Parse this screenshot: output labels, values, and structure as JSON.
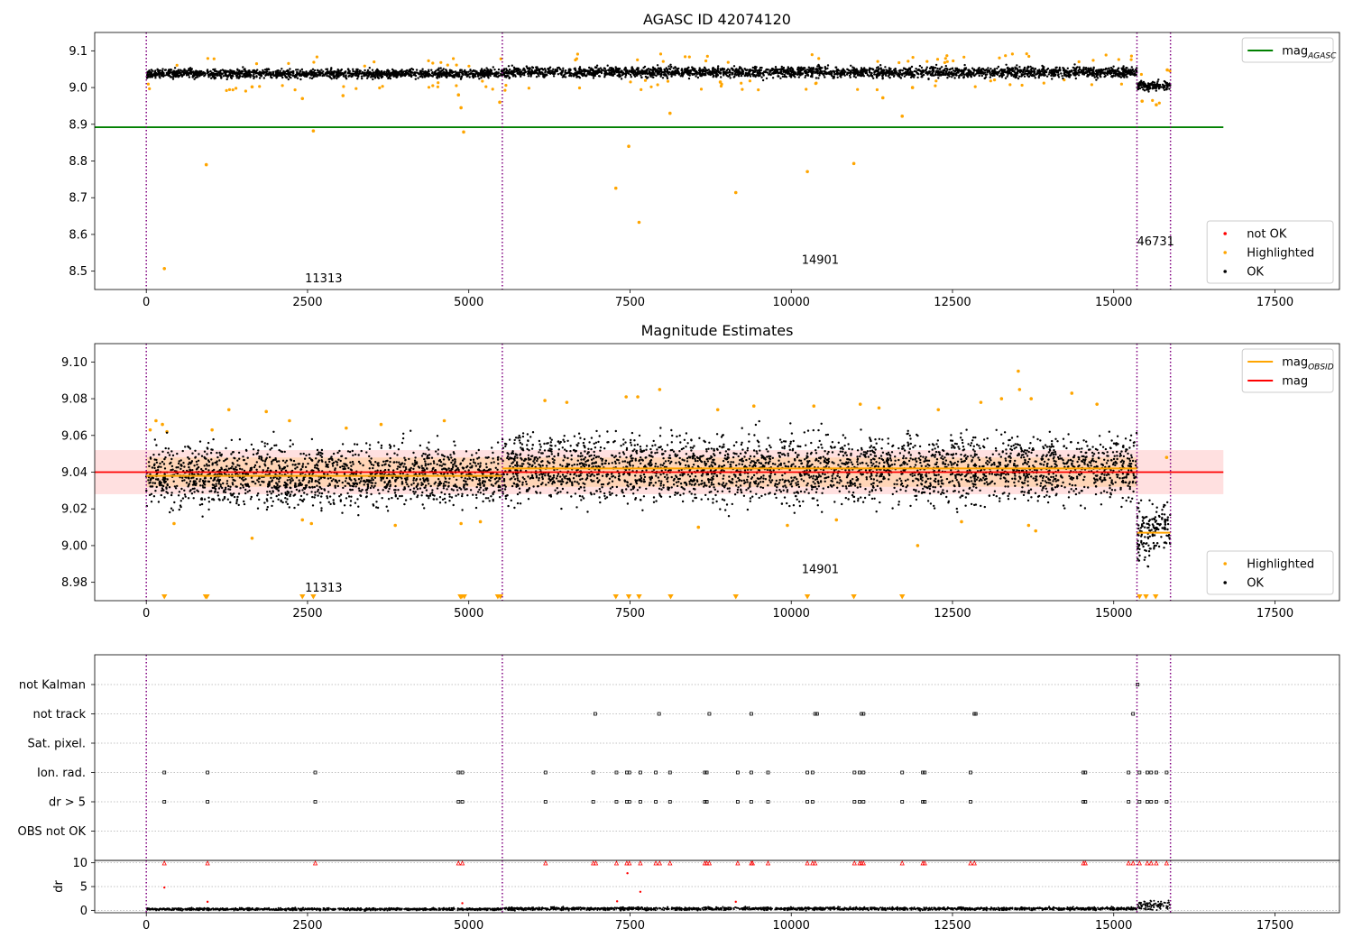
{
  "chart_data": [
    {
      "type": "scatter",
      "title": "AGASC ID 42074120",
      "xlabel": "",
      "ylabel": "",
      "xlim": [
        -800,
        18500
      ],
      "ylim": [
        8.45,
        9.15
      ],
      "xticks": [
        0,
        2500,
        5000,
        7500,
        10000,
        12500,
        15000,
        17500
      ],
      "yticks": [
        8.5,
        8.6,
        8.7,
        8.8,
        8.9,
        9.0,
        9.1
      ],
      "ytick_decimals": 1,
      "obs_boundaries": [
        0,
        5520,
        15360,
        15880
      ],
      "obs_labels": [
        {
          "text": "11313",
          "x": 2750,
          "y": 8.47
        },
        {
          "text": "14901",
          "x": 10450,
          "y": 8.52
        },
        {
          "text": "46731",
          "x": 15650,
          "y": 8.57
        }
      ],
      "segments": [
        {
          "x0": 0,
          "x1": 5520,
          "mean": 9.038,
          "spread": 0.006
        },
        {
          "x0": 5520,
          "x1": 15360,
          "mean": 9.042,
          "spread": 0.007
        },
        {
          "x0": 15360,
          "x1": 15880,
          "mean": 9.005,
          "spread": 0.006
        }
      ],
      "reference_lines": [
        {
          "name": "mag_AGASC",
          "label_main": "mag",
          "label_sub": "AGASC",
          "y": 8.892,
          "x0": -800,
          "x1": 16700,
          "color": "#008000"
        }
      ],
      "highlighted_points": {
        "x": [
          280,
          930,
          1640,
          2420,
          2590,
          3050,
          4840,
          4880,
          4920,
          5480,
          7280,
          7480,
          7640,
          8120,
          8900,
          9140,
          10250,
          10970,
          11420,
          11720,
          11880,
          15440,
          15660,
          15830
        ],
        "y": [
          8.507,
          8.79,
          9.002,
          8.97,
          8.882,
          8.978,
          8.98,
          8.945,
          8.879,
          8.96,
          8.726,
          8.84,
          8.633,
          8.93,
          9.015,
          8.714,
          8.771,
          8.793,
          8.972,
          8.922,
          9.0,
          8.963,
          8.953,
          9.048
        ]
      },
      "legends": [
        {
          "position": "top-right",
          "items": [
            {
              "label_main": "mag",
              "label_sub": "AGASC",
              "kind": "line",
              "color": "#008000"
            }
          ]
        },
        {
          "position": "bottom-right",
          "items": [
            {
              "label_main": "not OK",
              "label_sub": "",
              "kind": "dot",
              "color": "#ff0000"
            },
            {
              "label_main": "Highlighted",
              "label_sub": "",
              "kind": "dot",
              "color": "#ffa500"
            },
            {
              "label_main": "OK",
              "label_sub": "",
              "kind": "dot",
              "color": "#000000"
            }
          ]
        }
      ]
    },
    {
      "type": "scatter",
      "title": "Magnitude Estimates",
      "xlabel": "",
      "ylabel": "",
      "xlim": [
        -800,
        18500
      ],
      "ylim": [
        8.97,
        9.11
      ],
      "xticks": [
        0,
        2500,
        5000,
        7500,
        10000,
        12500,
        15000,
        17500
      ],
      "yticks": [
        8.98,
        9.0,
        9.02,
        9.04,
        9.06,
        9.08,
        9.1
      ],
      "ytick_decimals": 2,
      "obs_boundaries": [
        0,
        5520,
        15360,
        15880
      ],
      "obs_labels": [
        {
          "text": "11313",
          "x": 2750,
          "y": 8.975
        },
        {
          "text": "14901",
          "x": 10450,
          "y": 8.985
        }
      ],
      "segments": [
        {
          "x0": 0,
          "x1": 5520,
          "mean": 9.038,
          "spread": 0.008
        },
        {
          "x0": 5520,
          "x1": 15360,
          "mean": 9.042,
          "spread": 0.009
        },
        {
          "x0": 15360,
          "x1": 15880,
          "mean": 9.007,
          "spread": 0.008
        }
      ],
      "band": {
        "y0": 9.028,
        "y1": 9.052,
        "x0": -800,
        "x1": 16700,
        "color": "#ff0000"
      },
      "obsid_band": {
        "y0": 9.032,
        "y1": 9.048,
        "x0": 0,
        "x1": 15360,
        "color": "#ffa500"
      },
      "reference_lines": [
        {
          "name": "mag",
          "label_main": "mag",
          "label_sub": "",
          "y": 9.04,
          "x0": -800,
          "x1": 16700,
          "color": "#ff0000"
        }
      ],
      "obsid_steps": [
        {
          "x0": 0,
          "x1": 5520,
          "y": 9.038
        },
        {
          "x0": 5520,
          "x1": 15360,
          "y": 9.042
        },
        {
          "x0": 15360,
          "x1": 15880,
          "y": 9.007
        }
      ],
      "highlighted_points": {
        "x": [
          60,
          150,
          250,
          320,
          430,
          1020,
          1280,
          1640,
          1860,
          2220,
          2420,
          2560,
          3100,
          3640,
          3860,
          4620,
          4880,
          5180,
          6180,
          6520,
          7440,
          7620,
          7960,
          8560,
          8860,
          9420,
          9940,
          10350,
          10700,
          11070,
          11360,
          11960,
          12280,
          12640,
          12940,
          13260,
          13520,
          13540,
          13680,
          13720,
          13790,
          14350,
          14740,
          15820
        ],
        "y": [
          9.063,
          9.068,
          9.066,
          9.062,
          9.012,
          9.063,
          9.074,
          9.004,
          9.073,
          9.068,
          9.014,
          9.012,
          9.064,
          9.066,
          9.011,
          9.068,
          9.012,
          9.013,
          9.079,
          9.078,
          9.081,
          9.081,
          9.085,
          9.01,
          9.074,
          9.076,
          9.011,
          9.076,
          9.014,
          9.077,
          9.075,
          9.0,
          9.074,
          9.013,
          9.078,
          9.08,
          9.095,
          9.085,
          9.011,
          9.08,
          9.008,
          9.083,
          9.077,
          9.048
        ]
      },
      "clipped_low_x": [
        280,
        920,
        940,
        2420,
        2590,
        4870,
        4890,
        4930,
        5450,
        5490,
        7280,
        7480,
        7640,
        8130,
        9140,
        10250,
        10970,
        11720,
        15400,
        15500,
        15650
      ],
      "legends": [
        {
          "position": "top-right",
          "items": [
            {
              "label_main": "mag",
              "label_sub": "OBSID",
              "kind": "line",
              "color": "#ffa500"
            },
            {
              "label_main": "mag",
              "label_sub": "",
              "kind": "line",
              "color": "#ff0000"
            }
          ]
        },
        {
          "position": "bottom-right",
          "items": [
            {
              "label_main": "Highlighted",
              "label_sub": "",
              "kind": "dot",
              "color": "#ffa500"
            },
            {
              "label_main": "OK",
              "label_sub": "",
              "kind": "dot",
              "color": "#000000"
            }
          ]
        }
      ]
    },
    {
      "type": "scatter",
      "title": "",
      "xlabel": "",
      "ylabel": "",
      "xlim": [
        -800,
        18500
      ],
      "categories": [
        "not Kalman",
        "not track",
        "Sat. pixel.",
        "Ion. rad.",
        "dr > 5",
        "OBS not OK"
      ],
      "obs_boundaries": [
        0,
        5520,
        15360,
        15880
      ],
      "flag_events": {
        "not Kalman": [
          15370
        ],
        "not track": [
          6960,
          7950,
          8730,
          9380,
          10370,
          10400,
          11090,
          11120,
          12840,
          12860,
          15300
        ],
        "Sat. pixel.": [],
        "Ion. rad.": [
          280,
          950,
          2620,
          4840,
          4900,
          6190,
          6930,
          7290,
          7450,
          7490,
          7660,
          7900,
          8120,
          8660,
          8690,
          9170,
          9380,
          9640,
          10250,
          10330,
          10980,
          11060,
          11120,
          11720,
          12040,
          12070,
          12780,
          14530,
          14560,
          15230,
          15400,
          15520,
          15580,
          15660,
          15820
        ],
        "dr > 5": [
          280,
          950,
          2620,
          4840,
          4900,
          6190,
          6930,
          7290,
          7450,
          7490,
          7660,
          7900,
          8120,
          8660,
          8690,
          9170,
          9380,
          9640,
          10250,
          10330,
          10980,
          11060,
          11120,
          11720,
          12040,
          12070,
          12780,
          14530,
          14560,
          15230,
          15400,
          15520,
          15580,
          15660,
          15820
        ],
        "OBS not OK": []
      }
    },
    {
      "type": "scatter",
      "title": "",
      "xlabel": "",
      "ylabel": "dr",
      "xlim": [
        -800,
        18500
      ],
      "ylim": [
        -0.5,
        10.5
      ],
      "yticks": [
        0,
        5,
        10
      ],
      "ytick_decimals": 0,
      "obs_boundaries": [
        0,
        5520,
        15360,
        15880
      ],
      "segments": [
        {
          "x0": 0,
          "x1": 5520,
          "mean": 0.25,
          "spread": 0.12
        },
        {
          "x0": 5520,
          "x1": 15360,
          "mean": 0.35,
          "spread": 0.15
        },
        {
          "x0": 15360,
          "x1": 15880,
          "mean": 1.1,
          "spread": 0.45
        }
      ],
      "clipped_high_x": [
        280,
        950,
        2620,
        4840,
        4900,
        6190,
        6930,
        6970,
        7290,
        7450,
        7490,
        7660,
        7900,
        7960,
        8120,
        8660,
        8690,
        8730,
        9170,
        9380,
        9400,
        9640,
        10250,
        10330,
        10370,
        10980,
        11060,
        11090,
        11120,
        11720,
        12040,
        12070,
        12780,
        12840,
        14530,
        14560,
        15230,
        15300,
        15400,
        15520,
        15580,
        15660,
        15820
      ],
      "extra_points": {
        "x": [
          280,
          950,
          4900,
          7300,
          7460,
          7660,
          9140
        ],
        "y": [
          4.8,
          1.8,
          1.5,
          1.9,
          7.8,
          3.9,
          1.8
        ]
      }
    }
  ]
}
